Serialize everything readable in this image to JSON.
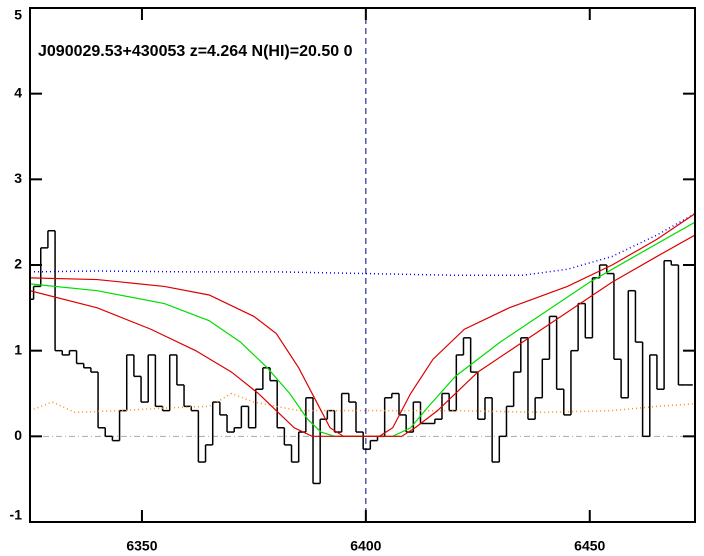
{
  "chart_data": {
    "type": "line",
    "title": "J090029.53+430053 z=4.264 N(HI)=20.50 0",
    "xlim": [
      6325,
      6473.5
    ],
    "ylim": [
      -1,
      5
    ],
    "xticks": [
      6350,
      6400,
      6450
    ],
    "yticks": [
      -1,
      0,
      1,
      2,
      3,
      4,
      5
    ],
    "hlines": [
      0
    ],
    "vlines": [
      6400
    ],
    "series": [
      {
        "color": "#000000",
        "style": "step",
        "x": [
          6325,
          6326.6,
          6328.2,
          6329.8,
          6331.4,
          6333,
          6334.6,
          6336.2,
          6337.8,
          6339.4,
          6341,
          6342.6,
          6344.2,
          6345.8,
          6347.4,
          6349,
          6350.6,
          6352.2,
          6353.8,
          6355.4,
          6357,
          6358.6,
          6360.2,
          6361.8,
          6363.4,
          6365,
          6366.6,
          6368.2,
          6369.8,
          6371.4,
          6373,
          6374.6,
          6376.2,
          6377.8,
          6379.4,
          6381,
          6382.6,
          6384.2,
          6385.8,
          6387.4,
          6389,
          6390.6,
          6392.2,
          6393.8,
          6395.4,
          6397,
          6398.6,
          6400.2,
          6401.8,
          6403.4,
          6405,
          6406.6,
          6408.2,
          6409.8,
          6411.4,
          6413,
          6414.6,
          6416.2,
          6417.8,
          6419.4,
          6421,
          6422.6,
          6424.2,
          6425.8,
          6427.4,
          6429,
          6430.6,
          6432.2,
          6433.8,
          6435.4,
          6437,
          6438.6,
          6440.2,
          6441.8,
          6443.4,
          6445,
          6446.6,
          6448.2,
          6449.8,
          6451.4,
          6453,
          6454.6,
          6456.2,
          6457.8,
          6459.4,
          6461,
          6462.6,
          6464.2,
          6465.8,
          6467.4,
          6469,
          6470.6,
          6472.2
        ],
        "values": [
          1.6,
          1.75,
          2.2,
          2.4,
          1.0,
          0.95,
          1.0,
          0.85,
          0.8,
          0.75,
          0.1,
          0.0,
          -0.05,
          0.3,
          0.95,
          0.7,
          0.4,
          0.95,
          0.35,
          0.3,
          0.95,
          0.6,
          0.35,
          0.3,
          -0.3,
          -0.1,
          0.4,
          0.25,
          0.05,
          0.1,
          0.35,
          0.1,
          0.55,
          0.8,
          0.65,
          0.1,
          -0.1,
          -0.3,
          0.05,
          0.45,
          -0.55,
          0.2,
          0.3,
          0.05,
          0.5,
          0.4,
          0.05,
          -0.15,
          -0.05,
          0.0,
          0.45,
          0.5,
          0.25,
          0.05,
          0.4,
          0.15,
          0.15,
          0.2,
          0.5,
          0.3,
          0.95,
          1.15,
          0.75,
          0.2,
          0.45,
          -0.3,
          0.0,
          0.35,
          0.75,
          1.15,
          0.2,
          0.45,
          0.9,
          1.4,
          0.55,
          0.25,
          1.0,
          1.55,
          1.15,
          1.85,
          2.0,
          1.9,
          0.9,
          0.45,
          1.7,
          1.1,
          0.0,
          0.95,
          0.55,
          2.05,
          2.0,
          0.6,
          0.6
        ]
      },
      {
        "color": "#0000ff",
        "style": "dotted",
        "x": [
          6325,
          6340,
          6360,
          6380,
          6400,
          6420,
          6435,
          6445,
          6455,
          6465,
          6473.5
        ],
        "values": [
          1.92,
          1.93,
          1.92,
          1.92,
          1.9,
          1.88,
          1.88,
          1.95,
          2.1,
          2.35,
          2.6
        ]
      },
      {
        "color": "#ff8c1a",
        "style": "dotted",
        "x": [
          6325,
          6330,
          6335,
          6345,
          6355,
          6365,
          6370,
          6375,
          6385,
          6400,
          6420,
          6440,
          6455,
          6465,
          6473.5
        ],
        "values": [
          0.3,
          0.4,
          0.28,
          0.3,
          0.33,
          0.35,
          0.5,
          0.4,
          0.3,
          0.3,
          0.3,
          0.28,
          0.3,
          0.35,
          0.38
        ]
      },
      {
        "color": "#00dd00",
        "style": "solid",
        "x": [
          6325,
          6340,
          6355,
          6365,
          6372,
          6378,
          6383,
          6387,
          6390,
          6393,
          6406,
          6410,
          6414,
          6420,
          6430,
          6440,
          6450,
          6460,
          6473.5
        ],
        "values": [
          1.78,
          1.7,
          1.55,
          1.35,
          1.1,
          0.8,
          0.5,
          0.2,
          0.05,
          0.0,
          0.0,
          0.1,
          0.35,
          0.7,
          1.1,
          1.45,
          1.8,
          2.1,
          2.5
        ]
      },
      {
        "color": "#dd0000",
        "style": "solid",
        "x": [
          6325,
          6340,
          6355,
          6365,
          6375,
          6380,
          6385,
          6389,
          6392,
          6395,
          6403,
          6406,
          6410,
          6415,
          6422,
          6432,
          6445,
          6455,
          6465,
          6473.5
        ],
        "values": [
          1.85,
          1.83,
          1.75,
          1.65,
          1.4,
          1.2,
          0.8,
          0.4,
          0.1,
          0.0,
          0.0,
          0.1,
          0.5,
          0.9,
          1.25,
          1.5,
          1.75,
          2.0,
          2.3,
          2.6
        ]
      },
      {
        "color": "#dd0000",
        "style": "solid",
        "x": [
          6325,
          6340,
          6352,
          6362,
          6370,
          6376,
          6380,
          6384,
          6388,
          6408,
          6411,
          6416,
          6425,
          6435,
          6445,
          6455,
          6465,
          6473.5
        ],
        "values": [
          1.7,
          1.5,
          1.25,
          1.0,
          0.75,
          0.5,
          0.3,
          0.1,
          0.0,
          0.0,
          0.1,
          0.3,
          0.75,
          1.1,
          1.45,
          1.8,
          2.1,
          2.35
        ]
      }
    ]
  }
}
